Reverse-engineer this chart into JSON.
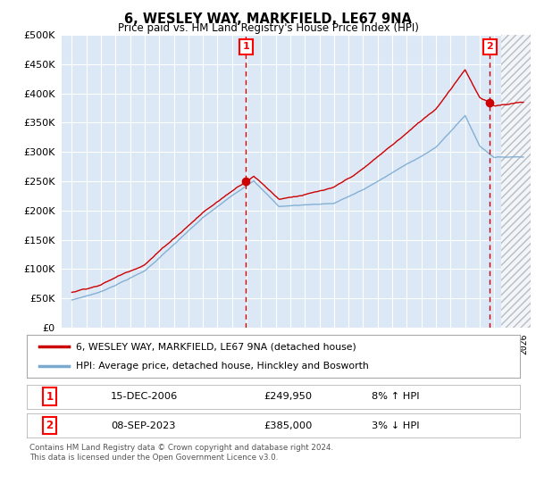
{
  "title": "6, WESLEY WAY, MARKFIELD, LE67 9NA",
  "subtitle": "Price paid vs. HM Land Registry's House Price Index (HPI)",
  "sale1_date": "15-DEC-2006",
  "sale1_price": 249950,
  "sale1_label": "8% ↑ HPI",
  "sale2_date": "08-SEP-2023",
  "sale2_price": 385000,
  "sale2_label": "3% ↓ HPI",
  "legend_line1": "6, WESLEY WAY, MARKFIELD, LE67 9NA (detached house)",
  "legend_line2": "HPI: Average price, detached house, Hinckley and Bosworth",
  "footer": "Contains HM Land Registry data © Crown copyright and database right 2024.\nThis data is licensed under the Open Government Licence v3.0.",
  "line_color_red": "#cc0000",
  "line_color_blue": "#7aaad0",
  "bg_color": "#dce8f5",
  "vline_color": "#cc0000",
  "grid_color": "#ffffff",
  "ylim": [
    0,
    500000
  ],
  "yticks": [
    0,
    50000,
    100000,
    150000,
    200000,
    250000,
    300000,
    350000,
    400000,
    450000,
    500000
  ],
  "sale1_x": 2006.96,
  "sale2_x": 2023.69,
  "hatch_start": 2024.5,
  "xlim_left": 1994.3,
  "xlim_right": 2026.5
}
